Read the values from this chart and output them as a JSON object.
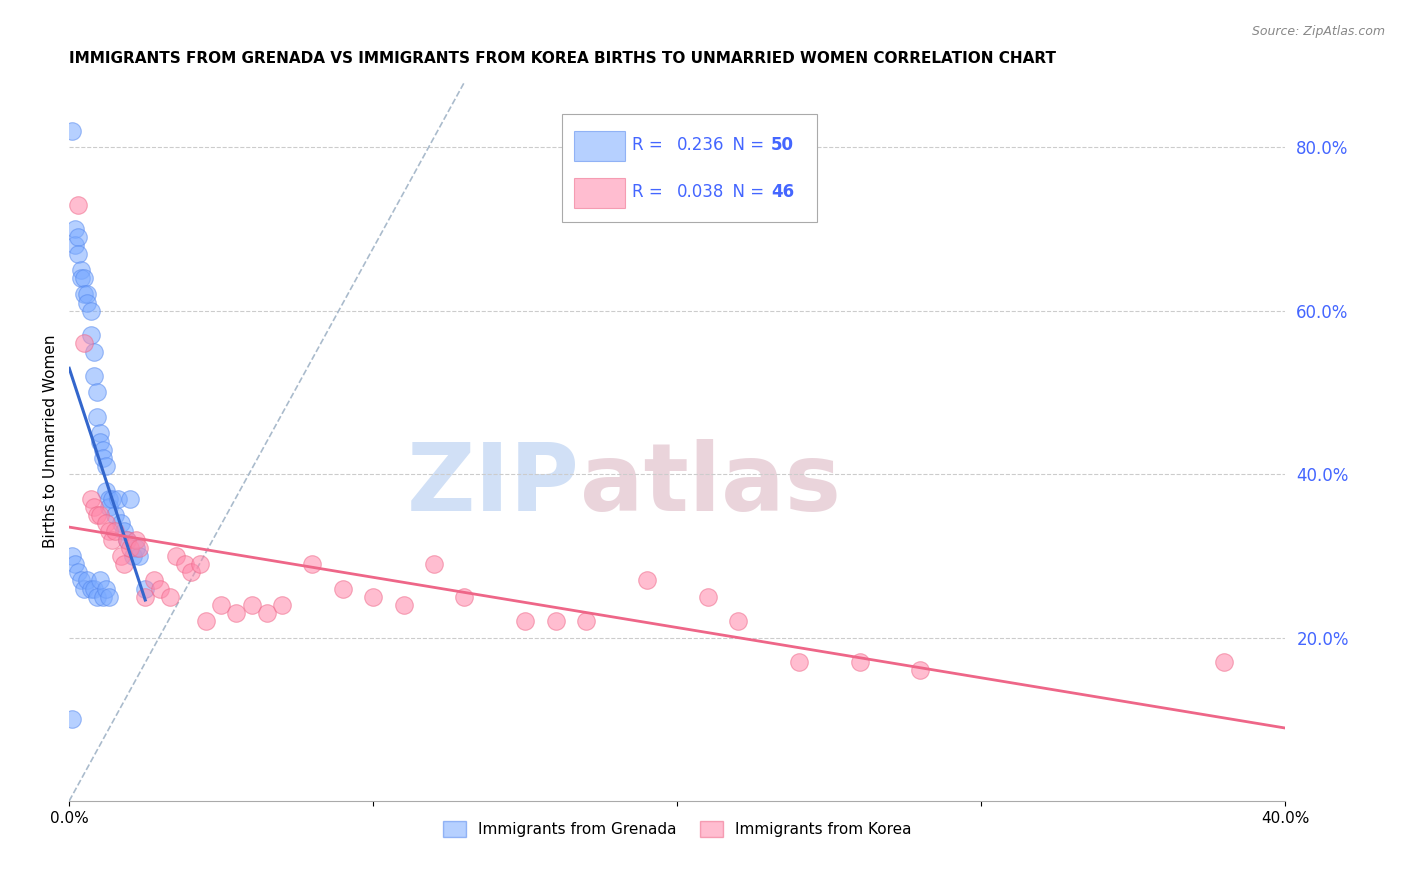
{
  "title": "IMMIGRANTS FROM GRENADA VS IMMIGRANTS FROM KOREA BIRTHS TO UNMARRIED WOMEN CORRELATION CHART",
  "source": "Source: ZipAtlas.com",
  "ylabel": "Births to Unmarried Women",
  "xlim": [
    0.0,
    0.4
  ],
  "ylim": [
    0.0,
    0.88
  ],
  "yticks_right": [
    0.2,
    0.4,
    0.6,
    0.8
  ],
  "ytick_right_labels": [
    "20.0%",
    "40.0%",
    "60.0%",
    "80.0%"
  ],
  "grenada_color": "#7aaaff",
  "grenada_edge_color": "#5588ee",
  "korea_color": "#ff88aa",
  "korea_edge_color": "#ee6688",
  "trend_blue": "#3366cc",
  "trend_pink": "#ee6688",
  "grenada_R": "0.236",
  "grenada_N": "50",
  "korea_R": "0.038",
  "korea_N": "46",
  "watermark_zip": "ZIP",
  "watermark_atlas": "atlas",
  "background_color": "#ffffff",
  "grid_color": "#cccccc",
  "axis_label_color": "#4466ff",
  "title_fontsize": 11,
  "grenada_x": [
    0.001,
    0.002,
    0.002,
    0.003,
    0.003,
    0.004,
    0.004,
    0.005,
    0.005,
    0.006,
    0.006,
    0.007,
    0.007,
    0.008,
    0.008,
    0.009,
    0.009,
    0.01,
    0.01,
    0.011,
    0.011,
    0.012,
    0.012,
    0.013,
    0.013,
    0.014,
    0.015,
    0.016,
    0.017,
    0.018,
    0.019,
    0.02,
    0.021,
    0.022,
    0.023,
    0.001,
    0.002,
    0.003,
    0.004,
    0.005,
    0.006,
    0.007,
    0.008,
    0.009,
    0.01,
    0.011,
    0.012,
    0.013,
    0.025,
    0.001
  ],
  "grenada_y": [
    0.82,
    0.7,
    0.68,
    0.69,
    0.67,
    0.65,
    0.64,
    0.64,
    0.62,
    0.62,
    0.61,
    0.6,
    0.57,
    0.55,
    0.52,
    0.5,
    0.47,
    0.45,
    0.44,
    0.43,
    0.42,
    0.41,
    0.38,
    0.37,
    0.36,
    0.37,
    0.35,
    0.37,
    0.34,
    0.33,
    0.32,
    0.37,
    0.3,
    0.31,
    0.3,
    0.3,
    0.29,
    0.28,
    0.27,
    0.26,
    0.27,
    0.26,
    0.26,
    0.25,
    0.27,
    0.25,
    0.26,
    0.25,
    0.26,
    0.1
  ],
  "korea_x": [
    0.003,
    0.005,
    0.007,
    0.008,
    0.009,
    0.01,
    0.012,
    0.013,
    0.014,
    0.015,
    0.017,
    0.018,
    0.019,
    0.02,
    0.022,
    0.023,
    0.025,
    0.028,
    0.03,
    0.033,
    0.035,
    0.038,
    0.04,
    0.043,
    0.045,
    0.05,
    0.055,
    0.06,
    0.065,
    0.07,
    0.08,
    0.09,
    0.1,
    0.11,
    0.12,
    0.13,
    0.15,
    0.16,
    0.17,
    0.19,
    0.21,
    0.22,
    0.24,
    0.26,
    0.28,
    0.38
  ],
  "korea_y": [
    0.73,
    0.56,
    0.37,
    0.36,
    0.35,
    0.35,
    0.34,
    0.33,
    0.32,
    0.33,
    0.3,
    0.29,
    0.32,
    0.31,
    0.32,
    0.31,
    0.25,
    0.27,
    0.26,
    0.25,
    0.3,
    0.29,
    0.28,
    0.29,
    0.22,
    0.24,
    0.23,
    0.24,
    0.23,
    0.24,
    0.29,
    0.26,
    0.25,
    0.24,
    0.29,
    0.25,
    0.22,
    0.22,
    0.22,
    0.27,
    0.25,
    0.22,
    0.17,
    0.17,
    0.16,
    0.17
  ]
}
